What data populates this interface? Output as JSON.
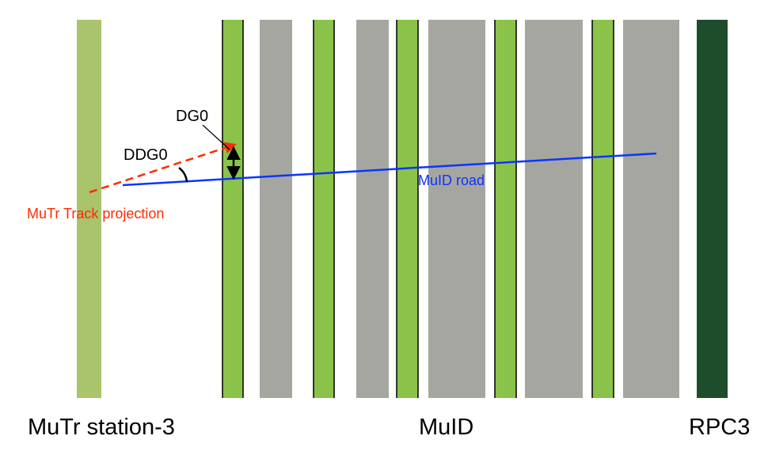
{
  "labels": {
    "mutr_station": "MuTr station-3",
    "muid": "MuID",
    "rpc3": "RPC3",
    "dg0": "DG0",
    "ddg0": "DDG0",
    "mutr_track": "MuTr Track projection",
    "muid_road": "MuID road"
  },
  "colors": {
    "mutr_station": "#a9c46c",
    "muid_gap": "#8bc34a",
    "steel": "#a6a6a1",
    "rpc3": "#1e4d2b",
    "track": "#ff2a00",
    "road": "#0a35ff",
    "annotation": "#000000"
  }
}
